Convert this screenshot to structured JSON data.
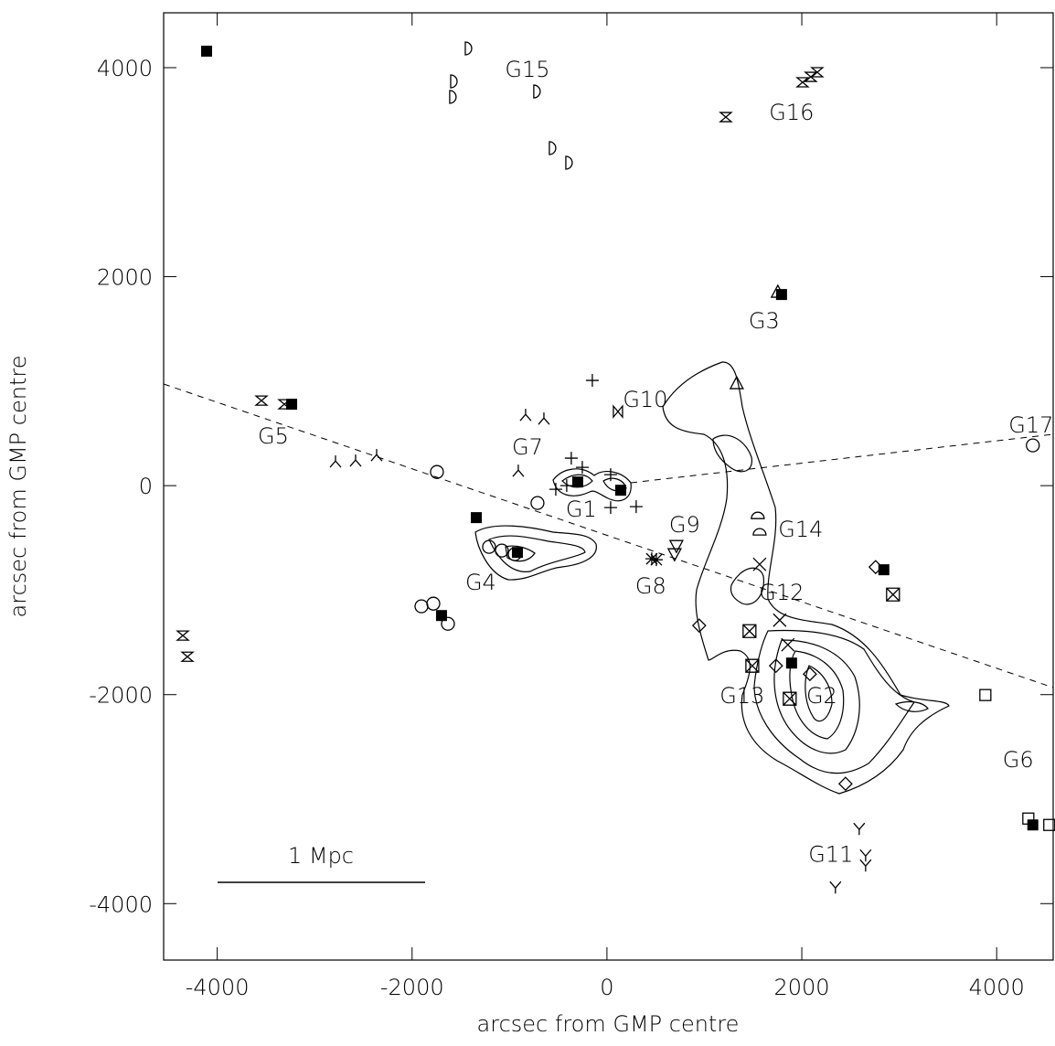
{
  "chart_data": {
    "type": "scatter",
    "x_label": "arcsec from GMP centre",
    "y_label": "arcsec from GMP centre",
    "xlim": [
      -4550,
      4580
    ],
    "ylim": [
      -4540,
      4525
    ],
    "xticks": [
      -4000,
      -2000,
      0,
      2000,
      4000
    ],
    "yticks": [
      -4000,
      -2000,
      0,
      2000,
      4000
    ],
    "scale_bar_label": "1 Mpc",
    "series": [
      {
        "marker": "filled-square",
        "color": "#000",
        "x": [
          -4109,
          -3236,
          -1341,
          1792,
          -300,
          141,
          -919,
          -1698,
          1895,
          2842,
          4371
        ],
        "y": [
          4158,
          779,
          -306,
          1829,
          35,
          -44,
          -639,
          -1243,
          -1698,
          -805,
          -3247
        ]
      },
      {
        "marker": "half-d",
        "color": "#000",
        "x": [
          -1407,
          -1557,
          -1567,
          -704,
          -544,
          -375
        ],
        "y": [
          4184,
          3869,
          3720,
          3772,
          3230,
          3090
        ]
      },
      {
        "marker": "hourglass",
        "color": "#000",
        "x": [
          1220,
          2008,
          2092,
          2158,
          -3546,
          -3311,
          -4353,
          -4306
        ],
        "y": [
          3527,
          3860,
          3912,
          3956,
          814,
          779,
          -1435,
          -1637
        ]
      },
      {
        "marker": "tri-lambda",
        "color": "#000",
        "x": [
          -2786,
          -2580,
          -2364,
          -835,
          -647,
          -910
        ],
        "y": [
          219,
          228,
          280,
          665,
          630,
          131
        ]
      },
      {
        "marker": "plus",
        "color": "#000",
        "x": [
          -150,
          -366,
          -253,
          38,
          38,
          300,
          -413,
          -525
        ],
        "y": [
          1007,
          263,
          175,
          105,
          -210,
          -201,
          0,
          -35
        ]
      },
      {
        "marker": "bowtie",
        "color": "#000",
        "x": [
          113
        ],
        "y": [
          709
        ]
      },
      {
        "marker": "circle",
        "color": "#000",
        "x": [
          -1745,
          -713,
          -1210,
          -1079,
          -947,
          -1904,
          -1782,
          -1632,
          4371
        ],
        "y": [
          131,
          -166,
          -586,
          -621,
          -656,
          -1155,
          -1129,
          -1322,
          385
        ]
      },
      {
        "marker": "asterisk",
        "color": "#000",
        "x": [
          460,
          507
        ],
        "y": [
          -700,
          -709
        ]
      },
      {
        "marker": "triangle-down",
        "color": "#000",
        "x": [
          713,
          694
        ],
        "y": [
          -569,
          -648
        ]
      },
      {
        "marker": "triangle-up",
        "color": "#000",
        "x": [
          1754,
          1332
        ],
        "y": [
          1847,
          972
        ]
      },
      {
        "marker": "half-circle",
        "color": "#000",
        "x": [
          1548,
          1567
        ],
        "y": [
          -298,
          -455
        ]
      },
      {
        "marker": "x",
        "color": "#000",
        "x": [
          1567,
          1773,
          1857
        ],
        "y": [
          -753,
          -1287,
          -1523
        ]
      },
      {
        "marker": "diamond",
        "color": "#000",
        "x": [
          947,
          2758,
          1735,
          2083,
          2449
        ],
        "y": [
          -1339,
          -779,
          -1724,
          -1803,
          -2853
        ]
      },
      {
        "marker": "boxed-x",
        "color": "#000",
        "x": [
          1463,
          1492,
          1876,
          2936
        ],
        "y": [
          -1392,
          -1724,
          -2039,
          -1042
        ]
      },
      {
        "marker": "open-square",
        "color": "#000",
        "x": [
          3884,
          4325,
          4540
        ],
        "y": [
          -2004,
          -3186,
          -3247
        ]
      },
      {
        "marker": "tri-y",
        "color": "#000",
        "x": [
          2589,
          2655,
          2655,
          2345
        ],
        "y": [
          -3282,
          -3536,
          -3632,
          -3842
        ]
      }
    ],
    "annotations": [
      {
        "text": "G15",
        "x": -816,
        "y": 3991
      },
      {
        "text": "G16",
        "x": 1895,
        "y": 3580
      },
      {
        "text": "G3",
        "x": 1613,
        "y": 1584
      },
      {
        "text": "G10",
        "x": 394,
        "y": 832
      },
      {
        "text": "G5",
        "x": -3424,
        "y": 481
      },
      {
        "text": "G7",
        "x": -816,
        "y": 376
      },
      {
        "text": "G1",
        "x": -263,
        "y": -219
      },
      {
        "text": "G9",
        "x": 797,
        "y": -368
      },
      {
        "text": "G14",
        "x": 1989,
        "y": -411
      },
      {
        "text": "G4",
        "x": -1295,
        "y": -919
      },
      {
        "text": "G8",
        "x": 450,
        "y": -954
      },
      {
        "text": "G12",
        "x": 1792,
        "y": -1015
      },
      {
        "text": "G13",
        "x": 1388,
        "y": -2004
      },
      {
        "text": "G2",
        "x": 2205,
        "y": -2004
      },
      {
        "text": "G17",
        "x": 4353,
        "y": 586
      },
      {
        "text": "G6",
        "x": 4221,
        "y": -2617
      },
      {
        "text": "G11",
        "x": 2298,
        "y": -3519
      }
    ]
  }
}
